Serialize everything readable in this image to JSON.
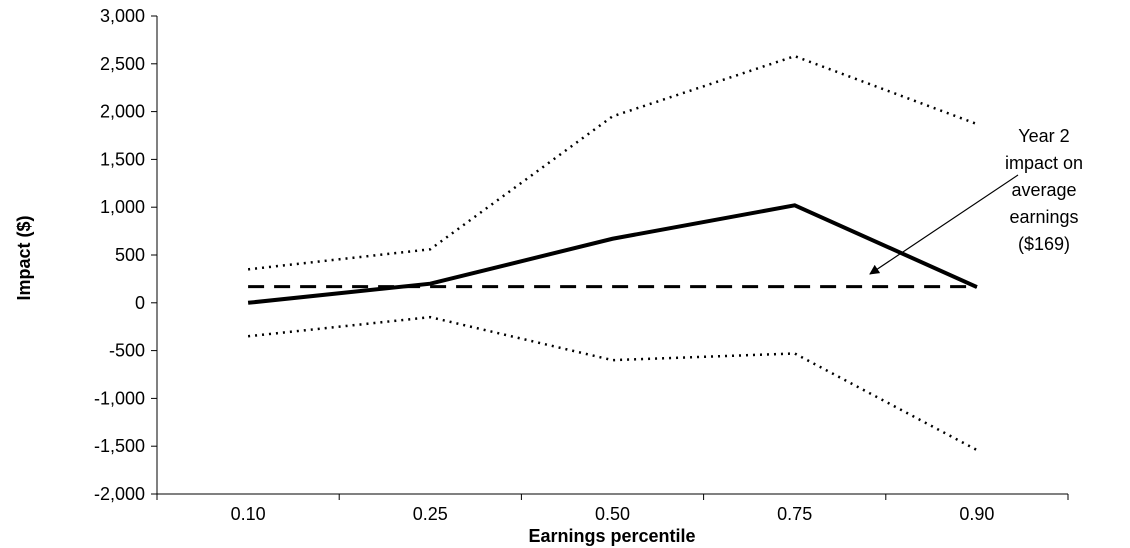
{
  "chart_data": {
    "type": "line",
    "title": "",
    "xlabel": "Earnings percentile",
    "ylabel": "Impact ($)",
    "categories": [
      "0.10",
      "0.25",
      "0.50",
      "0.75",
      "0.90"
    ],
    "ylim": [
      -2000,
      3000
    ],
    "yticks": [
      -2000,
      -1500,
      -1000,
      -500,
      0,
      500,
      1000,
      1500,
      2000,
      2500,
      3000
    ],
    "ytick_labels": [
      "-2,000",
      "-1,500",
      "-1,000",
      "-500",
      "0",
      "500",
      "1,000",
      "1,500",
      "2,000",
      "2,500",
      "3,000"
    ],
    "grid": false,
    "legend": "none",
    "series": [
      {
        "style": "solid",
        "values": [
          0,
          200,
          670,
          1020,
          165
        ]
      },
      {
        "style": "dotted",
        "values": [
          350,
          560,
          1950,
          2580,
          1870
        ]
      },
      {
        "style": "dotted",
        "values": [
          -350,
          -150,
          -600,
          -530,
          -1540
        ]
      },
      {
        "style": "dashed",
        "values": [
          169,
          169,
          169,
          169,
          169
        ]
      }
    ],
    "annotation": {
      "lines": [
        "Year 2",
        "impact on",
        "average",
        "earnings",
        "($169)"
      ]
    }
  }
}
